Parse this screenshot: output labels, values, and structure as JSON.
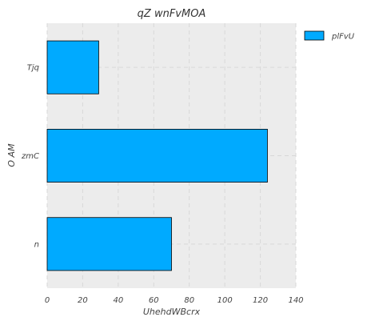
{
  "chart_data": {
    "type": "bar",
    "orientation": "horizontal",
    "title": "qZ wnFvMOA",
    "xlabel": "UhehdWBcrx",
    "ylabel": "O  AM",
    "categories": [
      "Tjq",
      "zmC",
      "n"
    ],
    "series": [
      {
        "name": "plFvU",
        "values": [
          29,
          124,
          70
        ],
        "color": "#00aaff"
      }
    ],
    "xlim": [
      0,
      140
    ],
    "xticks": [
      "0",
      "20",
      "40",
      "60",
      "80",
      "100",
      "120",
      "140"
    ],
    "grid": true,
    "legend_position": "top-right outside",
    "colors": {
      "plot_background": "#ececec",
      "bar_fill": "#00aaff",
      "bar_edge": "#000000",
      "grid": "#d8d8d8"
    }
  }
}
